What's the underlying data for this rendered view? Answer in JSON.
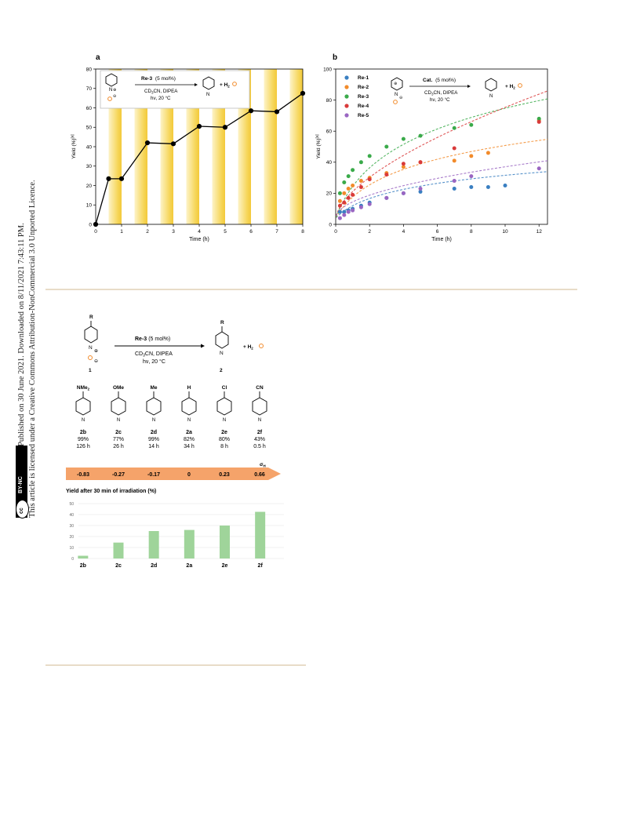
{
  "sidebar": {
    "line1": "Open Access Article. Published on 30 June 2021. Downloaded on 8/11/2021 7:43:11 PM.",
    "line2": "This article is licensed under a Creative Commons Attribution-NonCommercial 3.0 Unported Licence.",
    "badge_cc": "cc",
    "badge_text": "BY-NC"
  },
  "colors": {
    "light_band": "#f6d65a",
    "chart_line": "#000000",
    "re1": "#3a7fc1",
    "re2": "#f28b2b",
    "re3": "#3aaa4a",
    "re4": "#d93a3a",
    "re5": "#9a66c2",
    "arrow": "#f5a36a",
    "bar": "#9fd49a",
    "rule": "#e8dcc8"
  },
  "chart_data": [
    {
      "type": "line",
      "panel_label": "a",
      "xlabel": "Time (h)",
      "ylabel": "Yield (%)",
      "ylabel_sup": "[a]",
      "xlim": [
        0,
        8
      ],
      "ylim": [
        0,
        80
      ],
      "xticks": [
        "0",
        "1",
        "2",
        "3",
        "4",
        "5",
        "6",
        "7",
        "8"
      ],
      "yticks": [
        "0",
        "10",
        "20",
        "30",
        "40",
        "50",
        "60",
        "70",
        "80"
      ],
      "light_on_intervals": [
        [
          0.5,
          1
        ],
        [
          1.5,
          2
        ],
        [
          2.5,
          3
        ],
        [
          3.5,
          4
        ],
        [
          4.5,
          5
        ],
        [
          5.5,
          6
        ],
        [
          6.5,
          7
        ],
        [
          7.5,
          8
        ]
      ],
      "x": [
        0,
        0.5,
        1,
        2,
        3,
        4,
        5,
        6,
        7,
        8
      ],
      "y": [
        0,
        23.5,
        23.5,
        42,
        41.5,
        50.5,
        50,
        58.5,
        58,
        67.5
      ],
      "scheme": {
        "catalyst": "Re-3",
        "loading": "(5 mol%)",
        "conditions1": "CD",
        "conditions1_sub": "3",
        "conditions1_rest": "CN, DIPEA",
        "conditions2": "hν, 20 °C",
        "product_plus": "+ H",
        "product_sub": "2",
        "n_label": "N",
        "charge_plus": "⊕",
        "charge_minus": "⊖"
      }
    },
    {
      "type": "scatter",
      "panel_label": "b",
      "xlabel": "Time (h)",
      "ylabel": "Yield (%)",
      "ylabel_sup": "[a]",
      "xlim": [
        0,
        12.5
      ],
      "ylim": [
        0,
        100
      ],
      "xticks": [
        "0",
        "2",
        "4",
        "6",
        "8",
        "10",
        "12"
      ],
      "yticks": [
        "0",
        "20",
        "40",
        "60",
        "80",
        "100"
      ],
      "series": [
        {
          "name": "Re-1",
          "color_key": "re1",
          "x": [
            0.25,
            0.5,
            0.75,
            1,
            1.5,
            2,
            3,
            4,
            5,
            7,
            8,
            9,
            10,
            12
          ],
          "y": [
            8,
            8,
            9,
            10,
            12,
            14,
            17,
            20,
            21,
            23,
            24,
            24,
            25,
            null
          ]
        },
        {
          "name": "Re-2",
          "color_key": "re2",
          "x": [
            0.25,
            0.5,
            0.75,
            1,
            1.5,
            2,
            3,
            4,
            5,
            7,
            8,
            9,
            12
          ],
          "y": [
            15,
            20,
            23,
            25,
            28,
            30,
            33,
            37,
            40,
            41,
            44,
            46,
            67
          ]
        },
        {
          "name": "Re-3",
          "color_key": "re3",
          "x": [
            0.25,
            0.5,
            0.75,
            1,
            1.5,
            2,
            3,
            4,
            5,
            7,
            8,
            12
          ],
          "y": [
            20,
            27,
            31,
            35,
            40,
            44,
            50,
            55,
            57,
            62,
            64,
            68
          ]
        },
        {
          "name": "Re-4",
          "color_key": "re4",
          "x": [
            0.25,
            0.5,
            0.75,
            1,
            1.5,
            2,
            3,
            4,
            5,
            7,
            12
          ],
          "y": [
            12,
            14,
            17,
            19,
            24,
            29,
            32,
            39,
            40,
            49,
            66
          ]
        },
        {
          "name": "Re-5",
          "color_key": "re5",
          "x": [
            0.25,
            0.5,
            0.75,
            1,
            1.5,
            2,
            3,
            4,
            5,
            7,
            8,
            12
          ],
          "y": [
            4,
            6,
            8,
            9,
            11,
            13,
            17,
            20,
            23,
            28,
            31,
            36
          ]
        }
      ],
      "fits": [
        {
          "name": "Re-1",
          "color_key": "re1",
          "a": 11.5,
          "max_x": 12.5
        },
        {
          "name": "Re-2",
          "color_key": "re2",
          "a": 19.5,
          "max_x": 12.5
        },
        {
          "name": "Re-3",
          "color_key": "re3",
          "a": 29.5,
          "max_x": 12.5
        },
        {
          "name": "Re-4",
          "color_key": "re4",
          "a": 18,
          "pow": 0.62,
          "max_x": 12.5
        },
        {
          "name": "Re-5",
          "color_key": "re5",
          "a": 11,
          "pow": 0.5,
          "max_x": 12.5
        }
      ],
      "scheme": {
        "catalyst": "Cat.",
        "loading": "(5 mol%)",
        "conditions1": "CD",
        "conditions1_sub": "3",
        "conditions1_rest": "CN, DIPEA",
        "conditions2": "hν, 20 °C",
        "product_plus": "+ H",
        "product_sub": "2",
        "n_label": "N",
        "charge_plus": "⊕",
        "charge_minus": "⊖"
      }
    },
    {
      "type": "bar",
      "title": "Yield after 30 min of irradiation (%)",
      "categories": [
        "2b",
        "2c",
        "2d",
        "2a",
        "2e",
        "2f"
      ],
      "values": [
        2.5,
        14.5,
        25,
        26,
        30,
        42.5
      ],
      "ylim": [
        0,
        50
      ],
      "yticks": [
        "0",
        "10",
        "20",
        "30",
        "40",
        "50"
      ]
    }
  ],
  "scheme_c": {
    "substituent_R": "R",
    "reactant_label": "1",
    "product_label": "2",
    "catalyst": "Re-3",
    "loading": "(5 mol%)",
    "conditions1": "CD",
    "conditions1_sub": "3",
    "conditions1_rest": "CN, DIPEA",
    "conditions2": "hν, 20 °C",
    "product_plus": "+ H",
    "product_sub": "2",
    "n_label": "N",
    "charge_plus": "⊕",
    "charge_minus": "⊖",
    "sigma_label": "σ",
    "sigma_sub": "H",
    "compounds": [
      {
        "sub": "NMe",
        "sub_sub": "2",
        "label": "2b",
        "yield": "99%",
        "time": "126 h",
        "sigma": "-0.83"
      },
      {
        "sub": "OMe",
        "sub_sub": "",
        "label": "2c",
        "yield": "77%",
        "time": "26 h",
        "sigma": "-0.27"
      },
      {
        "sub": "Me",
        "sub_sub": "",
        "label": "2d",
        "yield": "99%",
        "time": "14 h",
        "sigma": "-0.17"
      },
      {
        "sub": "H",
        "sub_sub": "",
        "label": "2a",
        "yield": "82%",
        "time": "34 h",
        "sigma": "0"
      },
      {
        "sub": "Cl",
        "sub_sub": "",
        "label": "2e",
        "yield": "80%",
        "time": "8 h",
        "sigma": "0.23"
      },
      {
        "sub": "CN",
        "sub_sub": "",
        "label": "2f",
        "yield": "43%",
        "time": "0.5 h",
        "sigma": "0.66"
      }
    ]
  }
}
